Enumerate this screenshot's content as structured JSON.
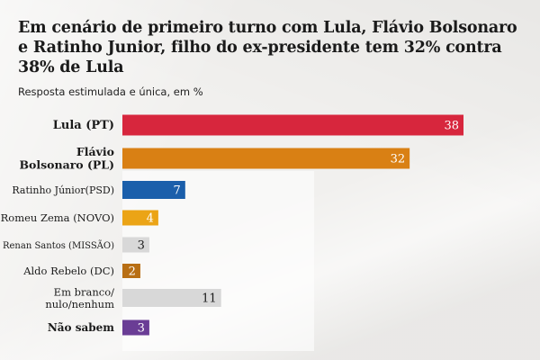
{
  "title": "Em cenário de primeiro turno com Lula, Flávio Bolsonaro e Ratinho Junior, filho do ex-presidente tem 32% contra 38% de Lula",
  "subtitle": "Resposta estimulada e única, em %",
  "chart_data": {
    "type": "bar",
    "orientation": "horizontal",
    "title": "Em cenário de primeiro turno com Lula, Flávio Bolsonaro e Ratinho Junior, filho do ex-presidente tem 32% contra 38% de Lula",
    "subtitle": "Resposta estimulada e única, em %",
    "categories": [
      "Lula (PT)",
      "Flávio Bolsonaro (PL)",
      "Ratinho Júnior(PSD)",
      "Romeu Zema (NOVO)",
      "Renan Santos (MISSÃO)",
      "Aldo Rebelo (DC)",
      "Em branco/ nulo/nenhum",
      "Não sabem"
    ],
    "category_lines": [
      [
        "Lula (PT)"
      ],
      [
        "Flávio",
        "Bolsonaro (PL)"
      ],
      [
        "Ratinho Júnior(PSD)"
      ],
      [
        "Romeu Zema (NOVO)"
      ],
      [
        "Renan Santos (MISSÃO)"
      ],
      [
        "Aldo Rebelo (DC)"
      ],
      [
        "Em branco/",
        "nulo/nenhum"
      ],
      [
        "Não sabem"
      ]
    ],
    "values": [
      38,
      32,
      7,
      4,
      3,
      2,
      11,
      3
    ],
    "value_labels": [
      "38",
      "32",
      "7",
      "4",
      "3",
      "2",
      "11",
      "3"
    ],
    "colors": [
      "#d7263d",
      "#d98014",
      "#1b5fab",
      "#eba416",
      "#d8d8d8",
      "#b86f14",
      "#d8d8d8",
      "#6a3d95"
    ],
    "xlim": [
      0,
      38
    ],
    "grid": false,
    "legend": "none"
  }
}
